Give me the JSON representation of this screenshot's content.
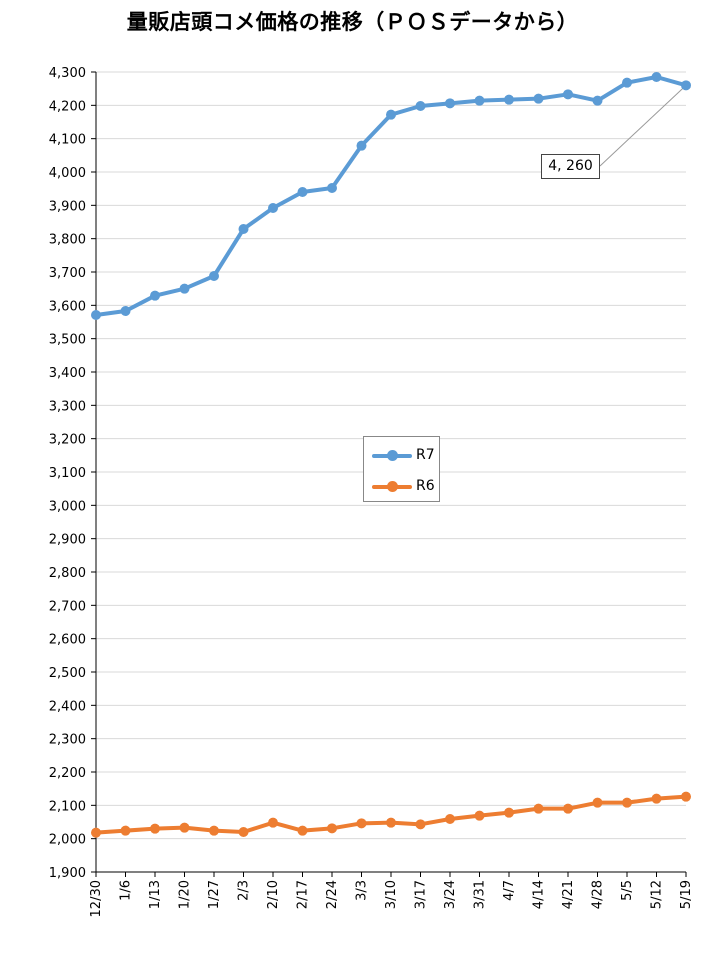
{
  "chart_data": {
    "type": "line",
    "title": "量販店頭コメ価格の推移（ＰＯＳデータから）",
    "xlabel": "",
    "ylabel": "",
    "ylim": [
      1900,
      4300
    ],
    "y_ticks": [
      "1,900",
      "2,000",
      "2,100",
      "2,200",
      "2,300",
      "2,400",
      "2,500",
      "2,600",
      "2,700",
      "2,800",
      "2,900",
      "3,000",
      "3,100",
      "3,200",
      "3,300",
      "3,400",
      "3,500",
      "3,600",
      "3,700",
      "3,800",
      "3,900",
      "4,000",
      "4,100",
      "4,200",
      "4,300"
    ],
    "categories": [
      "12/30",
      "1/6",
      "1/13",
      "1/20",
      "1/27",
      "2/3",
      "2/10",
      "2/17",
      "2/24",
      "3/3",
      "3/10",
      "3/17",
      "3/24",
      "3/31",
      "4/7",
      "4/14",
      "4/21",
      "4/28",
      "5/5",
      "5/12",
      "5/19"
    ],
    "series": [
      {
        "name": "R7",
        "color": "#5B9BD5",
        "values": [
          3571,
          3583,
          3629,
          3650,
          3688,
          3829,
          3892,
          3940,
          3952,
          4079,
          4172,
          4198,
          4206,
          4214,
          4217,
          4220,
          4233,
          4214,
          4268,
          4285,
          4260
        ]
      },
      {
        "name": "R6",
        "color": "#ED7D31",
        "values": [
          2018,
          2024,
          2030,
          2033,
          2024,
          2020,
          2048,
          2024,
          2031,
          2046,
          2048,
          2043,
          2059,
          2069,
          2078,
          2090,
          2090,
          2108,
          2108,
          2120,
          2126
        ]
      }
    ],
    "legend_position": "center",
    "grid": true,
    "annotation": {
      "text": "4, 260",
      "series": "R7",
      "category": "5/19"
    }
  }
}
